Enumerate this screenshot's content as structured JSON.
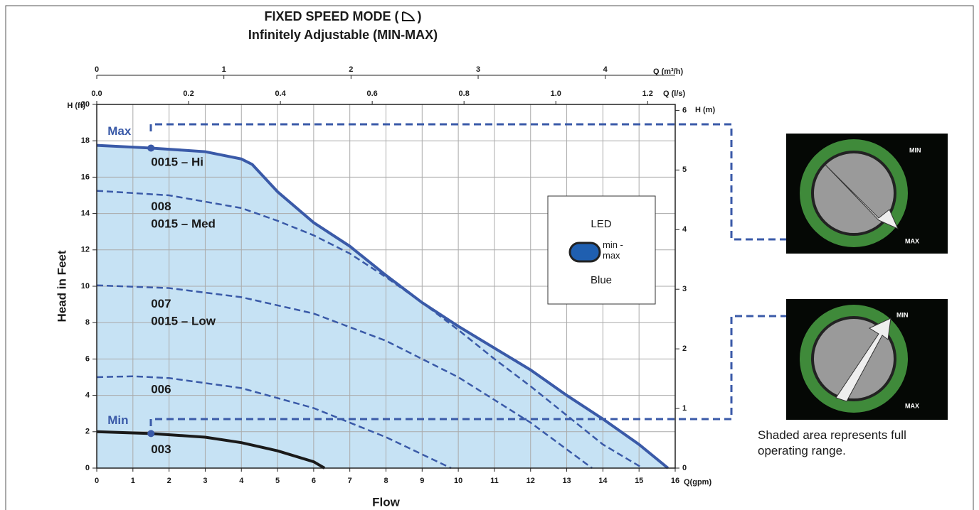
{
  "chart_data": {
    "type": "line",
    "title": "FIXED SPEED MODE (",
    "title_end": ")",
    "subtitle": "Infinitely Adjustable (MIN-MAX)",
    "xlabel": "Flow",
    "xunit": "Q(gpm)",
    "ylabel": "Head in Feet",
    "yunit": "H (ft)",
    "y2unit": "H (m)",
    "x2unit": "Q (m³/h)",
    "x3unit": "Q (l/s)",
    "xlim": [
      0,
      16
    ],
    "xticks": [
      0,
      1,
      2,
      3,
      4,
      5,
      6,
      7,
      8,
      9,
      10,
      11,
      12,
      13,
      14,
      15,
      16
    ],
    "ylim": [
      0,
      20
    ],
    "yticks": [
      0,
      2,
      4,
      6,
      8,
      10,
      12,
      14,
      16,
      18,
      20
    ],
    "y2lim": [
      0,
      6.1
    ],
    "y2ticks": [
      0,
      1,
      2,
      3,
      4,
      5,
      6
    ],
    "x2lim": [
      0,
      4.55
    ],
    "x2ticks": [
      0,
      1,
      2,
      3,
      4
    ],
    "x3lim": [
      0,
      1.26
    ],
    "x3ticks": [
      {
        "value": 0,
        "label": "0.0"
      },
      0.2,
      0.4,
      0.6,
      0.8,
      {
        "value": 1,
        "label": "1.0"
      },
      1.2
    ],
    "grid": true,
    "shaded_series": 0,
    "shade_color": "#c6e2f4",
    "series": [
      {
        "color": "#3a5aa8",
        "style": "solid",
        "x": [
          0,
          1.5,
          3,
          4,
          4.3,
          5,
          6,
          7,
          8,
          9,
          10,
          11,
          12,
          13,
          14,
          15,
          15.8
        ],
        "y": [
          17.75,
          17.6,
          17.4,
          17,
          16.7,
          15.2,
          13.5,
          12.2,
          10.6,
          9.1,
          7.8,
          6.6,
          5.4,
          4,
          2.7,
          1.3,
          0
        ]
      },
      {
        "color": "#3a5aa8",
        "style": "dashed",
        "x": [
          0,
          2,
          4,
          5,
          6,
          7,
          8,
          9,
          10,
          11,
          12,
          13,
          14,
          15.1
        ],
        "y": [
          15.25,
          15,
          14.3,
          13.6,
          12.8,
          11.8,
          10.5,
          9.1,
          7.6,
          6,
          4.5,
          2.9,
          1.3,
          0
        ]
      },
      {
        "color": "#3a5aa8",
        "style": "dashed",
        "x": [
          0,
          2,
          4,
          6,
          8,
          10,
          12,
          13.7
        ],
        "y": [
          10.05,
          9.9,
          9.4,
          8.5,
          7,
          5,
          2.5,
          0
        ]
      },
      {
        "color": "#3a5aa8",
        "style": "dashed",
        "x": [
          0,
          1,
          2,
          4,
          6,
          8,
          9.8
        ],
        "y": [
          5,
          5.05,
          4.95,
          4.4,
          3.3,
          1.7,
          0
        ]
      },
      {
        "color": "#1a1a1a",
        "style": "solid",
        "x": [
          0,
          1.5,
          3,
          4,
          5,
          6,
          6.3
        ],
        "y": [
          2,
          1.9,
          1.7,
          1.4,
          0.95,
          0.35,
          0
        ]
      }
    ],
    "points": [
      {
        "x": 1.5,
        "y": 17.6,
        "color": "#3a5aa8"
      },
      {
        "x": 1.5,
        "y": 1.9,
        "color": "#3a5aa8"
      }
    ],
    "annotations": [
      {
        "text": "Max",
        "x": 0.3,
        "y": 18.5,
        "color": "#3a5aa8"
      },
      {
        "text": "Min",
        "x": 0.3,
        "y": 2.6,
        "color": "#3a5aa8"
      },
      {
        "text": "0015 – Hi",
        "x": 1.5,
        "y": 16.8,
        "color": "#1a1a1a"
      },
      {
        "text": "008",
        "x": 1.5,
        "y": 14.35,
        "color": "#1a1a1a"
      },
      {
        "text": "0015 – Med",
        "x": 1.5,
        "y": 13.4,
        "color": "#1a1a1a"
      },
      {
        "text": "007",
        "x": 1.5,
        "y": 9,
        "color": "#1a1a1a"
      },
      {
        "text": "0015 – Low",
        "x": 1.5,
        "y": 8.05,
        "color": "#1a1a1a"
      },
      {
        "text": "006",
        "x": 1.5,
        "y": 4.3,
        "color": "#1a1a1a"
      },
      {
        "text": "003",
        "x": 1.5,
        "y": 1,
        "color": "#1a1a1a"
      }
    ],
    "led": {
      "title": "LED",
      "mode": "min - max",
      "color_name": "Blue"
    },
    "dials": [
      {
        "min": "MIN",
        "max": "MAX"
      },
      {
        "min": "MIN",
        "max": "MAX"
      }
    ],
    "caption": "Shaded area represents full operating range."
  }
}
